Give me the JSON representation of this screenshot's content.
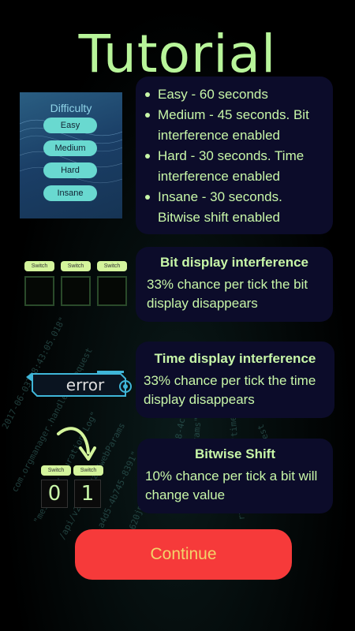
{
  "title": "Tutorial",
  "difficulty_panel": {
    "header": "Difficulty",
    "buttons": [
      "Easy",
      "Medium",
      "Hard",
      "Insane"
    ]
  },
  "difficulty_list": [
    "Easy - 60 seconds",
    "Medium - 45 seconds. Bit interference enabled",
    "Hard - 30 seconds. Time interference enabled",
    "Insane - 30 seconds. Bitwise shift enabled"
  ],
  "bit_display": {
    "heading": "Bit display interference",
    "text": "33%  chance per tick the bit display disappears",
    "switch_labels": [
      "Switch",
      "Switch",
      "Switch"
    ]
  },
  "time_display": {
    "heading": "Time display interference",
    "text": "33%  chance per tick the time display disappears",
    "error_label": "error"
  },
  "bitwise_shift": {
    "heading": "Bitwise Shift",
    "text": "10%  chance per tick a bit will change value",
    "switch_labels": [
      "Switch",
      "Switch"
    ],
    "bits": [
      "0",
      "1"
    ]
  },
  "continue_label": "Continue",
  "colors": {
    "accent_green": "#c8f7a8",
    "panel_bg": "#0c0c2a",
    "continue_bg": "#f63a3a",
    "continue_text": "#f3d36a"
  }
}
